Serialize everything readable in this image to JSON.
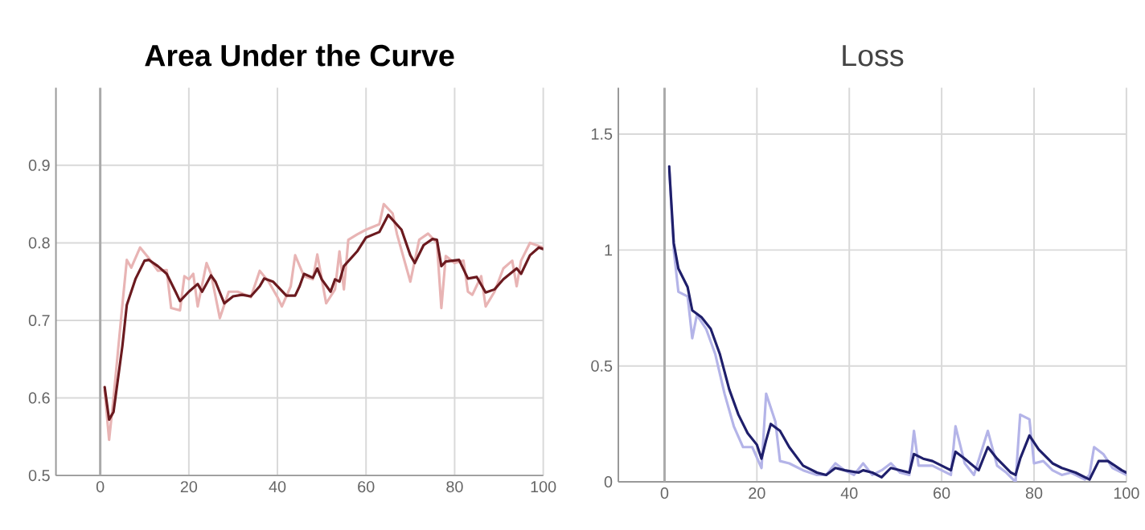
{
  "chart_data": [
    {
      "type": "line",
      "title": "Area Under the Curve",
      "xlim": [
        -10,
        100
      ],
      "ylim": [
        0.5,
        1.0
      ],
      "xticks": [
        0,
        20,
        40,
        60,
        80,
        100
      ],
      "yticks": [
        0.5,
        0.6,
        0.7,
        0.8,
        0.9
      ],
      "grid": true,
      "ref_lines": [
        {
          "axis": "x",
          "value": 0,
          "color": "#aaaaaa"
        }
      ],
      "series": [
        {
          "color": "#e8b4b4",
          "x": [
            1,
            2,
            3,
            5,
            6,
            7,
            9,
            11,
            13,
            15,
            16,
            18,
            19,
            20,
            21,
            22,
            24,
            25,
            27,
            29,
            31,
            34,
            36,
            38,
            40,
            41,
            43,
            44,
            46,
            48,
            49,
            51,
            53,
            54,
            55,
            56,
            58,
            60,
            63,
            64,
            66,
            67,
            70,
            72,
            74,
            76,
            77,
            78,
            80,
            82,
            83,
            84,
            86,
            87,
            89,
            91,
            93,
            94,
            95,
            97,
            100
          ],
          "values": [
            0.61,
            0.546,
            0.6,
            0.72,
            0.778,
            0.768,
            0.794,
            0.78,
            0.764,
            0.765,
            0.716,
            0.713,
            0.757,
            0.753,
            0.76,
            0.718,
            0.774,
            0.76,
            0.703,
            0.737,
            0.737,
            0.73,
            0.764,
            0.75,
            0.73,
            0.718,
            0.744,
            0.784,
            0.757,
            0.753,
            0.785,
            0.722,
            0.74,
            0.789,
            0.74,
            0.804,
            0.811,
            0.817,
            0.824,
            0.85,
            0.838,
            0.811,
            0.75,
            0.804,
            0.812,
            0.8,
            0.716,
            0.783,
            0.774,
            0.777,
            0.737,
            0.733,
            0.757,
            0.718,
            0.737,
            0.767,
            0.777,
            0.744,
            0.777,
            0.8,
            0.794
          ]
        },
        {
          "color": "#6b1a1f",
          "x": [
            1,
            2,
            3,
            5,
            6,
            8,
            10,
            11,
            13,
            15,
            17,
            18,
            20,
            22,
            23,
            25,
            26,
            28,
            30,
            32,
            34,
            36,
            37,
            39,
            42,
            44,
            45,
            46,
            48,
            49,
            50,
            52,
            53,
            54,
            55,
            58,
            60,
            63,
            65,
            68,
            70,
            71,
            73,
            75,
            76,
            77,
            78,
            81,
            83,
            85,
            87,
            89,
            91,
            94,
            95,
            97,
            99,
            100
          ],
          "values": [
            0.614,
            0.572,
            0.582,
            0.667,
            0.72,
            0.754,
            0.777,
            0.778,
            0.77,
            0.76,
            0.737,
            0.725,
            0.737,
            0.747,
            0.737,
            0.758,
            0.75,
            0.722,
            0.731,
            0.733,
            0.731,
            0.744,
            0.754,
            0.75,
            0.732,
            0.732,
            0.744,
            0.76,
            0.755,
            0.767,
            0.753,
            0.737,
            0.753,
            0.75,
            0.77,
            0.789,
            0.807,
            0.814,
            0.836,
            0.817,
            0.784,
            0.774,
            0.797,
            0.805,
            0.804,
            0.77,
            0.776,
            0.778,
            0.754,
            0.756,
            0.736,
            0.74,
            0.753,
            0.767,
            0.76,
            0.784,
            0.794,
            0.792
          ]
        }
      ]
    },
    {
      "type": "line",
      "title": "Loss",
      "xlim": [
        -10,
        100
      ],
      "ylim": [
        0,
        1.7
      ],
      "xticks": [
        0,
        20,
        40,
        60,
        80,
        100
      ],
      "yticks": [
        0,
        0.5,
        1,
        1.5
      ],
      "grid": true,
      "ref_lines": [
        {
          "axis": "x",
          "value": 0,
          "color": "#aaaaaa"
        }
      ],
      "series": [
        {
          "color": "#b4b4e8",
          "x": [
            1,
            2,
            3,
            5,
            6,
            7,
            9,
            11,
            13,
            15,
            17,
            19,
            21,
            22,
            24,
            25,
            27,
            30,
            33,
            35,
            37,
            39,
            41,
            43,
            45,
            47,
            49,
            51,
            53,
            54,
            55,
            58,
            61,
            62,
            63,
            65,
            67,
            70,
            72,
            74,
            76,
            77,
            79,
            80,
            82,
            84,
            86,
            88,
            91,
            92,
            93,
            95,
            97,
            100
          ],
          "values": [
            1.36,
            1.0,
            0.82,
            0.8,
            0.62,
            0.72,
            0.66,
            0.55,
            0.38,
            0.24,
            0.15,
            0.15,
            0.06,
            0.38,
            0.26,
            0.09,
            0.08,
            0.05,
            0.03,
            0.03,
            0.08,
            0.05,
            0.03,
            0.08,
            0.03,
            0.05,
            0.08,
            0.04,
            0.03,
            0.22,
            0.07,
            0.07,
            0.04,
            0.03,
            0.24,
            0.08,
            0.03,
            0.22,
            0.07,
            0.04,
            0.0,
            0.29,
            0.27,
            0.08,
            0.09,
            0.05,
            0.03,
            0.04,
            0.01,
            0.03,
            0.15,
            0.12,
            0.06,
            0.03
          ]
        },
        {
          "color": "#1f1f6b",
          "x": [
            1,
            2,
            3,
            5,
            6,
            8,
            10,
            12,
            14,
            16,
            18,
            20,
            21,
            22,
            23,
            25,
            27,
            30,
            33,
            35,
            37,
            39,
            42,
            43,
            45,
            47,
            49,
            51,
            53,
            54,
            56,
            58,
            60,
            62,
            63,
            65,
            68,
            70,
            72,
            75,
            76,
            77,
            79,
            81,
            84,
            86,
            89,
            92,
            94,
            96,
            99,
            100
          ],
          "values": [
            1.36,
            1.03,
            0.92,
            0.84,
            0.74,
            0.71,
            0.66,
            0.55,
            0.4,
            0.29,
            0.21,
            0.16,
            0.1,
            0.18,
            0.25,
            0.22,
            0.15,
            0.07,
            0.04,
            0.03,
            0.06,
            0.05,
            0.04,
            0.05,
            0.04,
            0.02,
            0.06,
            0.05,
            0.04,
            0.12,
            0.1,
            0.09,
            0.07,
            0.05,
            0.13,
            0.1,
            0.05,
            0.15,
            0.1,
            0.04,
            0.03,
            0.1,
            0.2,
            0.14,
            0.08,
            0.06,
            0.04,
            0.01,
            0.09,
            0.09,
            0.05,
            0.04
          ]
        }
      ]
    }
  ]
}
